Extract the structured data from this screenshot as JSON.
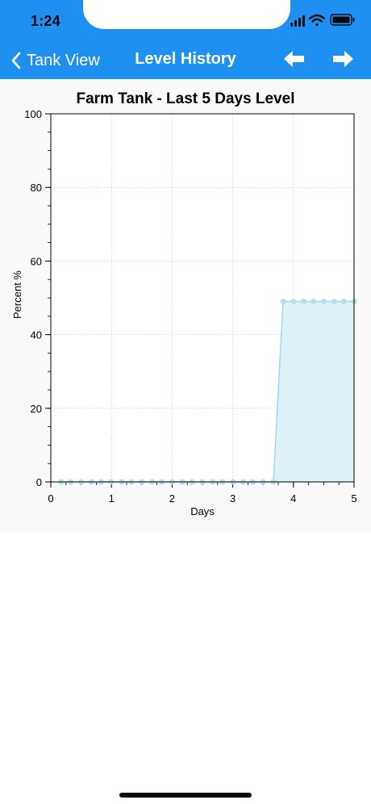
{
  "status_bar": {
    "time": "1:24"
  },
  "nav": {
    "back_label": "Tank View",
    "title": "Level History",
    "prev_icon": "arrow-left-icon",
    "next_icon": "arrow-right-icon"
  },
  "colors": {
    "header": "#1e90f2",
    "series_line": "#a6d8e4",
    "series_fill": "#dff1f8",
    "series_marker": "#b7dfea"
  },
  "chart_data": {
    "type": "area",
    "title": "Farm Tank - Last 5 Days Level",
    "xlabel": "Days",
    "ylabel": "Percent %",
    "xlim": [
      0,
      5
    ],
    "ylim": [
      0,
      100
    ],
    "x_ticks": [
      "0",
      "1",
      "2",
      "3",
      "4",
      "5"
    ],
    "y_ticks": [
      "0",
      "20",
      "40",
      "60",
      "80",
      "100"
    ],
    "grid": true,
    "legend": "none",
    "series": [
      {
        "x": [
          0.17,
          0.33,
          0.5,
          0.67,
          0.83,
          1.0,
          1.17,
          1.33,
          1.5,
          1.67,
          1.83,
          2.0,
          2.17,
          2.33,
          2.5,
          2.67,
          2.83,
          3.0,
          3.17,
          3.33,
          3.5,
          3.67,
          3.83,
          4.0,
          4.17,
          4.33,
          4.5,
          4.67,
          4.83,
          5.0
        ],
        "y": [
          0,
          0,
          0,
          0,
          0,
          0,
          0,
          0,
          0,
          0,
          0,
          0,
          0,
          0,
          0,
          0,
          0,
          0,
          0,
          0,
          0,
          0,
          49,
          49,
          49,
          49,
          49,
          49,
          49,
          49
        ]
      }
    ]
  }
}
